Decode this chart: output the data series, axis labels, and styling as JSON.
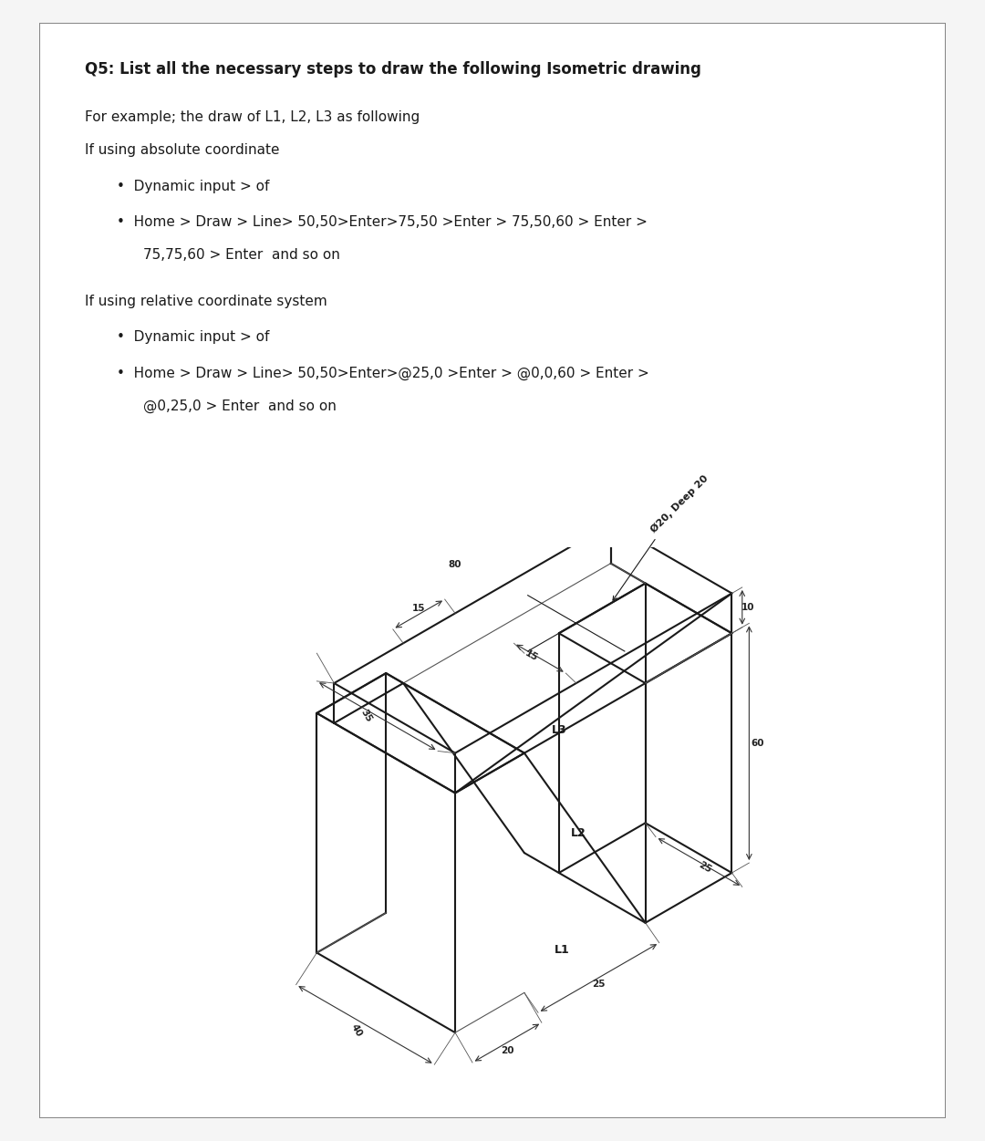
{
  "title": "Q5: List all the necessary steps to draw the following Isometric drawing",
  "title_bold": true,
  "paragraphs": [
    "For example; the draw of L1, L2, L3 as following",
    "If using absolute coordinate"
  ],
  "bullets_abs": [
    "Dynamic input > of",
    "Home > Draw > Line> 50,50>Enter>75,50 >Enter > 75,50,60 > Enter >\n    75,75,60 > Enter  and so on"
  ],
  "para2": "If using relative coordinate system",
  "bullets_rel": [
    "Dynamic input > of",
    "Home > Draw > Line> 50,50>Enter>@25,0 >Enter > @0,0,60 > Enter >\n    @0,25,0 > Enter  and so on"
  ],
  "bg_color": "#f5f5f5",
  "box_color": "#ffffff",
  "line_color": "#1a1a1a",
  "text_color": "#1a1a1a",
  "dim_color": "#333333"
}
